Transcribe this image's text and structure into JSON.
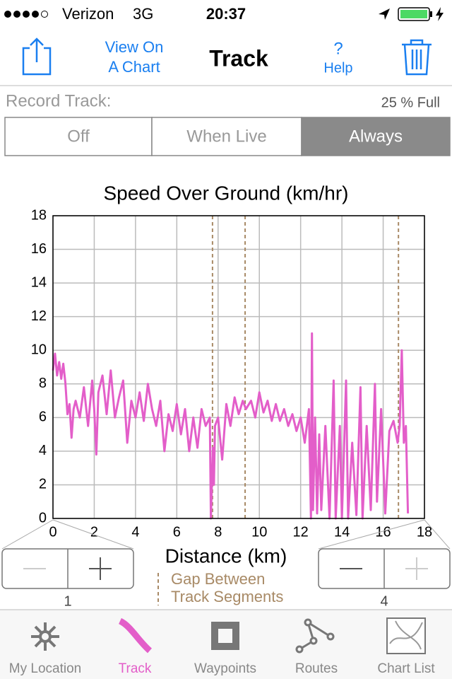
{
  "status_bar": {
    "carrier": "Verizon",
    "network": "3G",
    "time": "20:37"
  },
  "nav_bar": {
    "view_button": [
      "View On",
      "A Chart"
    ],
    "title": "Track",
    "help_icon": "?",
    "help": "Help"
  },
  "record": {
    "label": "Record Track:",
    "fill": "25 % Full",
    "options": [
      "Off",
      "When Live",
      "Always"
    ],
    "selected": 2
  },
  "chart_data": {
    "type": "line",
    "title": "Speed Over Ground (km/hr)",
    "xlabel": "Distance (km)",
    "x": [
      0,
      0.1,
      0.2,
      0.3,
      0.4,
      0.5,
      0.6,
      0.7,
      0.8,
      0.9,
      1.0,
      1.1,
      1.3,
      1.5,
      1.7,
      1.9,
      2.0,
      2.1,
      2.2,
      2.4,
      2.6,
      2.8,
      3.0,
      3.2,
      3.4,
      3.6,
      3.8,
      4.0,
      4.2,
      4.4,
      4.6,
      4.8,
      5.0,
      5.2,
      5.4,
      5.6,
      5.8,
      6.0,
      6.2,
      6.4,
      6.6,
      6.8,
      7.0,
      7.2,
      7.4,
      7.6,
      7.65,
      7.75,
      7.8,
      7.85,
      8.0,
      8.2,
      8.4,
      8.6,
      8.8,
      9.0,
      9.2,
      9.35,
      9.6,
      9.8,
      10.0,
      10.2,
      10.4,
      10.6,
      10.8,
      11.0,
      11.2,
      11.4,
      11.6,
      11.8,
      12.0,
      12.2,
      12.4,
      12.5,
      12.55,
      12.6,
      12.7,
      12.8,
      12.9,
      13.0,
      13.2,
      13.4,
      13.6,
      13.7,
      13.9,
      14.0,
      14.2,
      14.3,
      14.5,
      14.7,
      14.9,
      15.0,
      15.2,
      15.4,
      15.6,
      15.7,
      15.9,
      16.1,
      16.3,
      16.5,
      16.7,
      16.8,
      16.9,
      17.0,
      17.1,
      17.2
    ],
    "values": [
      8.8,
      9.8,
      8.5,
      9.3,
      8.3,
      9.2,
      8.1,
      6.2,
      6.8,
      4.8,
      6.5,
      7.0,
      6.0,
      7.8,
      5.5,
      8.2,
      6.5,
      3.8,
      7.5,
      8.5,
      6.2,
      8.8,
      6.0,
      7.2,
      8.2,
      4.5,
      7.0,
      6.0,
      7.5,
      5.8,
      8.0,
      6.5,
      5.5,
      7.0,
      4.0,
      6.2,
      5.2,
      6.8,
      5.0,
      6.5,
      4.0,
      6.0,
      4.2,
      6.5,
      5.5,
      6.0,
      0,
      4.2,
      2.0,
      5.5,
      6.0,
      3.5,
      6.8,
      5.5,
      7.2,
      6.2,
      7.0,
      6.5,
      7.0,
      6.0,
      7.5,
      6.3,
      7.0,
      5.8,
      6.8,
      5.8,
      6.5,
      5.5,
      6.2,
      5.2,
      6.0,
      4.5,
      6.5,
      0,
      11.0,
      0.5,
      6.0,
      0.3,
      5.0,
      0.5,
      5.5,
      0,
      8.2,
      0,
      5.5,
      0,
      8.2,
      0,
      4.5,
      0.2,
      7.8,
      0,
      5.5,
      0.5,
      8.0,
      1.0,
      6.5,
      0.3,
      5.2,
      5.8,
      4.5,
      5.5,
      10.0,
      4.5,
      5.5,
      0.3
    ],
    "color": "#e35ec9",
    "xlim": [
      0,
      18
    ],
    "xticks": [
      0,
      2,
      4,
      6,
      8,
      10,
      12,
      14,
      16,
      18
    ],
    "ylim": [
      0,
      18
    ],
    "yticks": [
      0,
      2,
      4,
      6,
      8,
      10,
      12,
      14,
      16,
      18
    ],
    "grid": true,
    "gaps": [
      7.73,
      9.31,
      16.74
    ],
    "gap_color": "#a88a66",
    "gap_legend": [
      "Gap Between",
      "Track Segments"
    ]
  },
  "steppers": [
    1,
    4
  ],
  "tab_bar": {
    "items": [
      "My Location",
      "Track",
      "Waypoints",
      "Routes",
      "Chart List"
    ],
    "selected": 1
  }
}
